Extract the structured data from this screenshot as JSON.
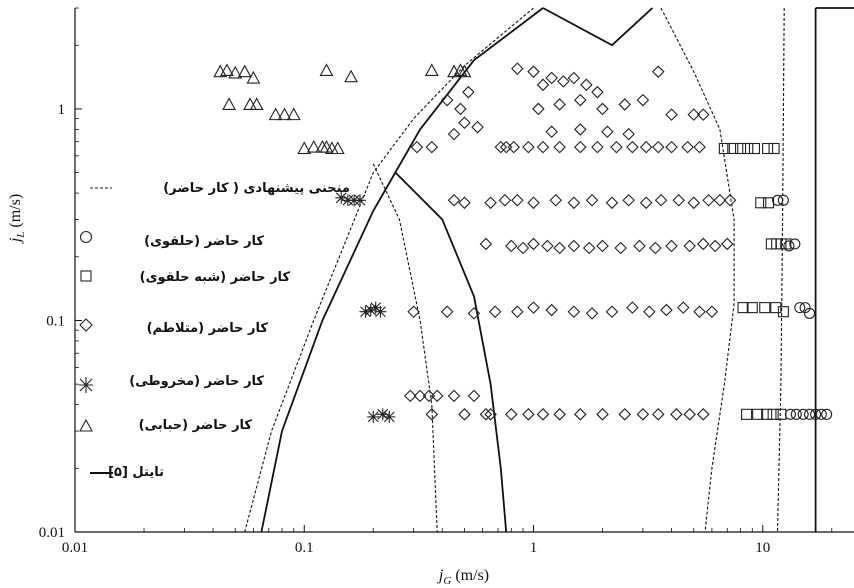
{
  "chart_data": {
    "type": "scatter",
    "x_scale": "log",
    "y_scale": "log",
    "xlim": [
      0.01,
      25
    ],
    "ylim": [
      0.01,
      3
    ],
    "x_ticks": [
      {
        "v": 0.01,
        "label": "0.01"
      },
      {
        "v": 0.1,
        "label": "0.1"
      },
      {
        "v": 1,
        "label": "1"
      },
      {
        "v": 10,
        "label": "10"
      }
    ],
    "y_ticks": [
      {
        "v": 0.01,
        "label": "0.01"
      },
      {
        "v": 0.1,
        "label": "0.1"
      },
      {
        "v": 1,
        "label": "1"
      }
    ],
    "xlabel_main": "j",
    "xlabel_sub": "G",
    "xlabel_unit": " (m/s)",
    "ylabel_main": "j",
    "ylabel_sub": "L",
    "ylabel_unit": " (m/s)",
    "legend_placement": "left",
    "legend": [
      {
        "symbol": "dashed",
        "label": "منحنی پیشنهادی ( کار حاضر)"
      },
      {
        "symbol": "circle",
        "label": "کار حاضر (حلقوی)"
      },
      {
        "symbol": "square",
        "label": "کار حاضر (شبه حلقوی)"
      },
      {
        "symbol": "diamond",
        "label": "کار حاضر (متلاطم)"
      },
      {
        "symbol": "asterisk",
        "label": "کار حاضر (مخروطی)"
      },
      {
        "symbol": "triangle",
        "label": "کار حاضر (حبابی)"
      },
      {
        "symbol": "solid",
        "label": "تایتل [۵]"
      }
    ],
    "curves": [
      {
        "style": "solid",
        "points": [
          [
            0.065,
            0.01
          ],
          [
            0.08,
            0.03
          ],
          [
            0.12,
            0.1
          ],
          [
            0.2,
            0.33
          ],
          [
            0.32,
            0.8
          ],
          [
            0.55,
            1.7
          ],
          [
            1.1,
            3.0
          ]
        ]
      },
      {
        "style": "solid",
        "points": [
          [
            0.25,
            0.5
          ],
          [
            0.4,
            0.3
          ],
          [
            0.55,
            0.13
          ],
          [
            0.65,
            0.05
          ],
          [
            0.72,
            0.02
          ],
          [
            0.76,
            0.01
          ]
        ]
      },
      {
        "style": "solid",
        "points": [
          [
            1.1,
            3.0
          ],
          [
            2.2,
            2.0
          ],
          [
            3.3,
            3.0
          ]
        ]
      },
      {
        "style": "solid",
        "points": [
          [
            17,
            0.01
          ],
          [
            17,
            3.0
          ]
        ]
      },
      {
        "style": "solid",
        "points": [
          [
            17,
            3.0
          ],
          [
            25,
            3.0
          ]
        ]
      },
      {
        "style": "dashed",
        "points": [
          [
            0.055,
            0.01
          ],
          [
            0.072,
            0.03
          ],
          [
            0.11,
            0.1
          ],
          [
            0.2,
            0.5
          ],
          [
            0.3,
            0.9
          ],
          [
            0.5,
            1.6
          ],
          [
            1.0,
            3.0
          ]
        ]
      },
      {
        "style": "dashed",
        "points": [
          [
            0.2,
            0.55
          ],
          [
            0.26,
            0.3
          ],
          [
            0.32,
            0.1
          ],
          [
            0.36,
            0.04
          ],
          [
            0.38,
            0.01
          ]
        ]
      },
      {
        "style": "dashed",
        "points": [
          [
            3.6,
            3.0
          ],
          [
            5.0,
            1.5
          ],
          [
            6.5,
            0.8
          ],
          [
            7.5,
            0.3
          ],
          [
            7.5,
            0.12
          ],
          [
            6.8,
            0.05
          ],
          [
            6.0,
            0.02
          ],
          [
            5.6,
            0.01
          ]
        ]
      },
      {
        "style": "dashed",
        "points": [
          [
            12.4,
            3.0
          ],
          [
            12.2,
            0.3
          ],
          [
            12.0,
            0.05
          ],
          [
            11.6,
            0.01
          ]
        ]
      }
    ],
    "series": [
      {
        "symbol": "triangle",
        "points": [
          [
            0.043,
            1.5
          ],
          [
            0.046,
            1.52
          ],
          [
            0.05,
            1.48
          ],
          [
            0.055,
            1.5
          ],
          [
            0.06,
            1.4
          ],
          [
            0.047,
            1.05
          ],
          [
            0.058,
            1.05
          ],
          [
            0.062,
            1.05
          ],
          [
            0.075,
            0.94
          ],
          [
            0.082,
            0.94
          ],
          [
            0.09,
            0.94
          ],
          [
            0.1,
            0.65
          ],
          [
            0.11,
            0.66
          ],
          [
            0.12,
            0.66
          ],
          [
            0.125,
            0.66
          ],
          [
            0.132,
            0.65
          ],
          [
            0.14,
            0.65
          ],
          [
            0.125,
            1.52
          ],
          [
            0.16,
            1.42
          ],
          [
            0.36,
            1.52
          ],
          [
            0.45,
            1.5
          ],
          [
            0.48,
            1.52
          ],
          [
            0.5,
            1.5
          ]
        ]
      },
      {
        "symbol": "asterisk",
        "points": [
          [
            0.145,
            0.38
          ],
          [
            0.155,
            0.37
          ],
          [
            0.165,
            0.37
          ],
          [
            0.175,
            0.37
          ],
          [
            0.185,
            0.11
          ],
          [
            0.195,
            0.112
          ],
          [
            0.205,
            0.115
          ],
          [
            0.215,
            0.11
          ],
          [
            0.2,
            0.035
          ],
          [
            0.22,
            0.036
          ],
          [
            0.235,
            0.035
          ]
        ]
      },
      {
        "symbol": "diamond",
        "points": [
          [
            0.31,
            0.66
          ],
          [
            0.36,
            0.66
          ],
          [
            0.42,
            1.1
          ],
          [
            0.48,
            1.0
          ],
          [
            0.52,
            1.2
          ],
          [
            0.45,
            0.76
          ],
          [
            0.5,
            0.86
          ],
          [
            0.57,
            0.82
          ],
          [
            0.85,
            1.55
          ],
          [
            1.0,
            1.5
          ],
          [
            1.1,
            1.3
          ],
          [
            1.2,
            1.4
          ],
          [
            1.35,
            1.35
          ],
          [
            1.5,
            1.4
          ],
          [
            1.7,
            1.3
          ],
          [
            1.9,
            1.2
          ],
          [
            1.05,
            1.0
          ],
          [
            1.3,
            1.05
          ],
          [
            1.6,
            1.1
          ],
          [
            2.0,
            1.0
          ],
          [
            2.5,
            1.05
          ],
          [
            3.0,
            1.1
          ],
          [
            3.5,
            1.5
          ],
          [
            4.0,
            0.94
          ],
          [
            5.0,
            0.94
          ],
          [
            5.5,
            0.94
          ],
          [
            1.2,
            0.78
          ],
          [
            1.6,
            0.8
          ],
          [
            2.1,
            0.78
          ],
          [
            2.6,
            0.76
          ],
          [
            0.72,
            0.66
          ],
          [
            0.76,
            0.66
          ],
          [
            0.82,
            0.66
          ],
          [
            0.95,
            0.66
          ],
          [
            1.1,
            0.66
          ],
          [
            1.3,
            0.66
          ],
          [
            1.6,
            0.66
          ],
          [
            1.9,
            0.66
          ],
          [
            2.3,
            0.66
          ],
          [
            2.7,
            0.66
          ],
          [
            3.1,
            0.66
          ],
          [
            3.5,
            0.66
          ],
          [
            4.0,
            0.66
          ],
          [
            4.7,
            0.66
          ],
          [
            5.3,
            0.66
          ],
          [
            0.45,
            0.37
          ],
          [
            0.5,
            0.36
          ],
          [
            0.65,
            0.36
          ],
          [
            0.75,
            0.37
          ],
          [
            0.85,
            0.37
          ],
          [
            1.0,
            0.36
          ],
          [
            1.25,
            0.37
          ],
          [
            1.5,
            0.36
          ],
          [
            1.8,
            0.37
          ],
          [
            2.2,
            0.36
          ],
          [
            2.6,
            0.37
          ],
          [
            3.1,
            0.36
          ],
          [
            3.6,
            0.37
          ],
          [
            4.3,
            0.37
          ],
          [
            5.0,
            0.36
          ],
          [
            5.8,
            0.37
          ],
          [
            6.5,
            0.37
          ],
          [
            7.2,
            0.37
          ],
          [
            0.62,
            0.23
          ],
          [
            0.8,
            0.225
          ],
          [
            0.9,
            0.22
          ],
          [
            1.0,
            0.23
          ],
          [
            1.15,
            0.225
          ],
          [
            1.3,
            0.22
          ],
          [
            1.5,
            0.225
          ],
          [
            1.75,
            0.22
          ],
          [
            2.0,
            0.225
          ],
          [
            2.4,
            0.22
          ],
          [
            2.9,
            0.225
          ],
          [
            3.4,
            0.22
          ],
          [
            4.0,
            0.225
          ],
          [
            4.8,
            0.225
          ],
          [
            5.5,
            0.23
          ],
          [
            6.2,
            0.225
          ],
          [
            7.0,
            0.23
          ],
          [
            0.3,
            0.11
          ],
          [
            0.42,
            0.11
          ],
          [
            0.55,
            0.108
          ],
          [
            0.68,
            0.11
          ],
          [
            0.85,
            0.11
          ],
          [
            1.0,
            0.115
          ],
          [
            1.2,
            0.112
          ],
          [
            1.5,
            0.11
          ],
          [
            1.8,
            0.108
          ],
          [
            2.2,
            0.11
          ],
          [
            2.7,
            0.115
          ],
          [
            3.2,
            0.11
          ],
          [
            3.8,
            0.112
          ],
          [
            4.5,
            0.115
          ],
          [
            5.3,
            0.11
          ],
          [
            6.0,
            0.11
          ],
          [
            0.29,
            0.044
          ],
          [
            0.32,
            0.044
          ],
          [
            0.35,
            0.044
          ],
          [
            0.38,
            0.044
          ],
          [
            0.45,
            0.044
          ],
          [
            0.55,
            0.044
          ],
          [
            0.36,
            0.036
          ],
          [
            0.5,
            0.036
          ],
          [
            0.62,
            0.036
          ],
          [
            0.65,
            0.036
          ],
          [
            0.8,
            0.036
          ],
          [
            0.95,
            0.036
          ],
          [
            1.1,
            0.036
          ],
          [
            1.3,
            0.036
          ],
          [
            1.6,
            0.036
          ],
          [
            2.0,
            0.036
          ],
          [
            2.5,
            0.036
          ],
          [
            3.0,
            0.036
          ],
          [
            3.5,
            0.036
          ],
          [
            4.2,
            0.036
          ],
          [
            4.8,
            0.036
          ],
          [
            5.5,
            0.036
          ]
        ]
      },
      {
        "symbol": "square",
        "points": [
          [
            6.8,
            0.65
          ],
          [
            7.4,
            0.65
          ],
          [
            8.0,
            0.65
          ],
          [
            8.6,
            0.65
          ],
          [
            9.2,
            0.65
          ],
          [
            10.5,
            0.65
          ],
          [
            11.2,
            0.65
          ],
          [
            9.8,
            0.36
          ],
          [
            10.6,
            0.36
          ],
          [
            10.9,
            0.23
          ],
          [
            11.5,
            0.23
          ],
          [
            12.0,
            0.23
          ],
          [
            12.6,
            0.23
          ],
          [
            8.2,
            0.115
          ],
          [
            9.0,
            0.115
          ],
          [
            10.2,
            0.115
          ],
          [
            11.4,
            0.115
          ],
          [
            12.3,
            0.11
          ],
          [
            9.5,
            0.036
          ],
          [
            10.4,
            0.036
          ],
          [
            11.1,
            0.036
          ],
          [
            12.0,
            0.036
          ],
          [
            8.5,
            0.036
          ]
        ]
      },
      {
        "symbol": "circle",
        "points": [
          [
            11.6,
            0.37
          ],
          [
            12.3,
            0.37
          ],
          [
            13.0,
            0.225
          ],
          [
            13.8,
            0.23
          ],
          [
            14.5,
            0.115
          ],
          [
            15.3,
            0.115
          ],
          [
            16.0,
            0.108
          ],
          [
            13.2,
            0.036
          ],
          [
            14.0,
            0.036
          ],
          [
            15.0,
            0.036
          ],
          [
            16.0,
            0.036
          ],
          [
            17.0,
            0.036
          ],
          [
            18.0,
            0.036
          ],
          [
            19.0,
            0.036
          ]
        ]
      }
    ]
  }
}
